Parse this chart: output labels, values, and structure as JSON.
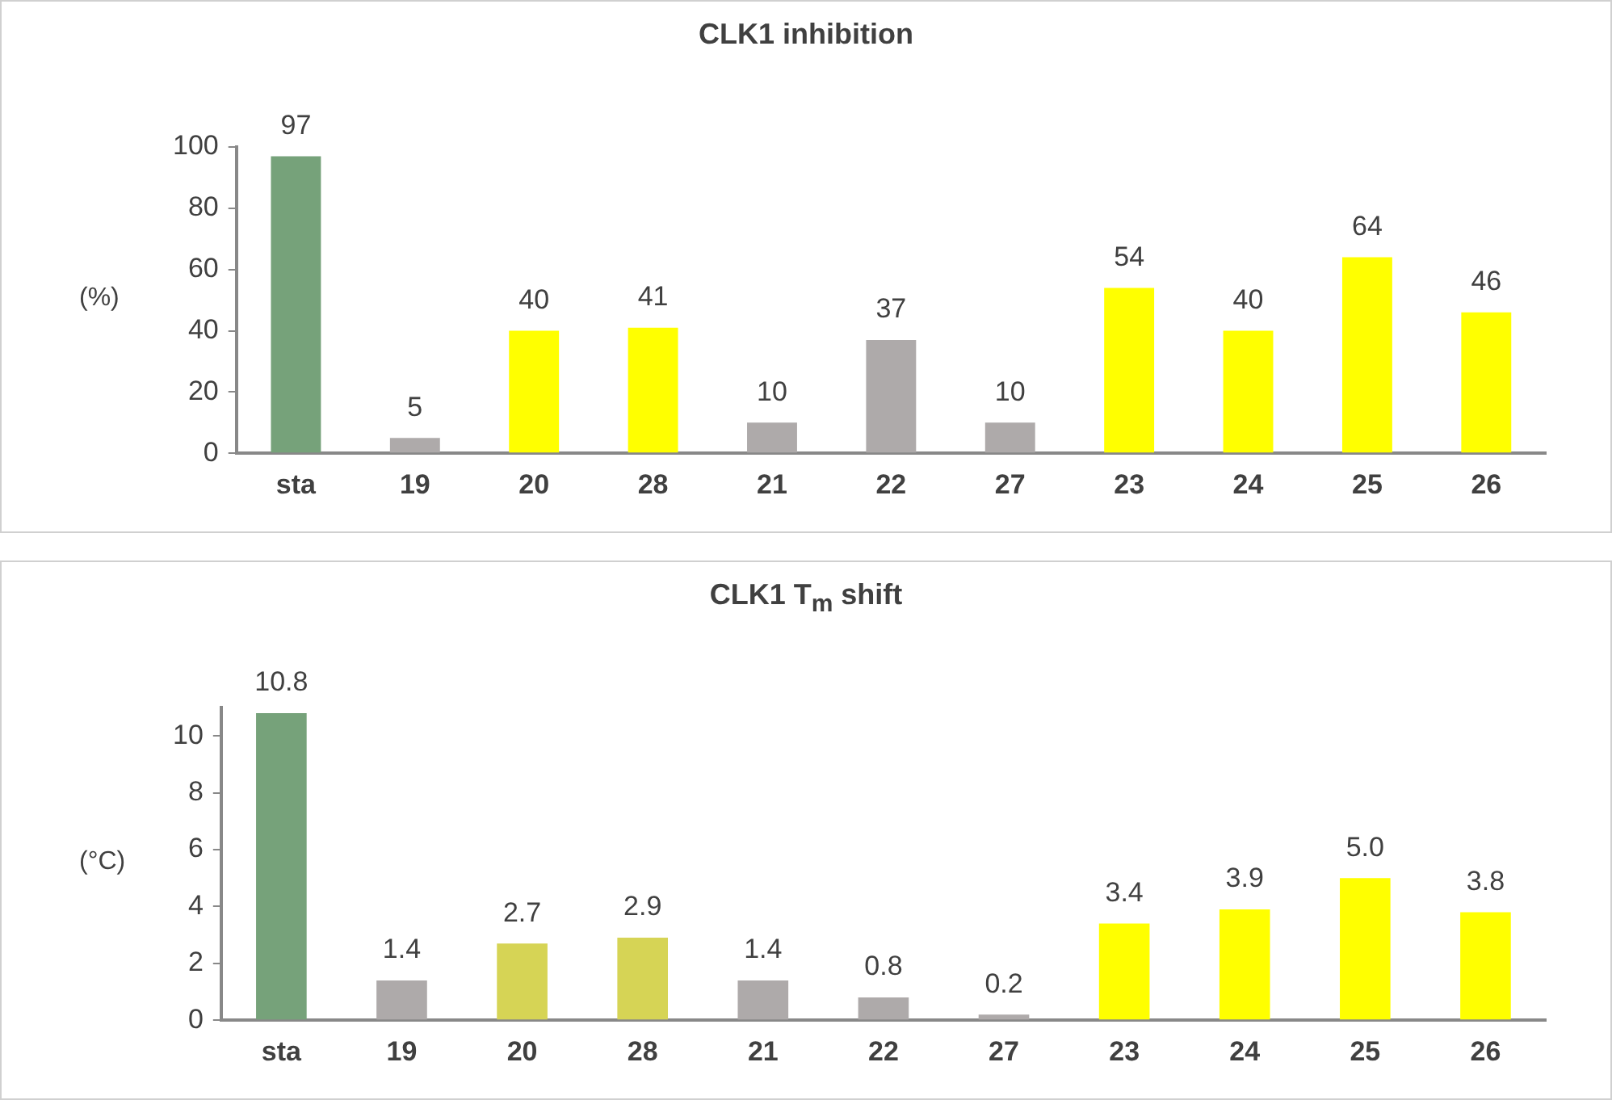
{
  "chart_data": [
    {
      "type": "bar",
      "title": "CLK1 inhibition",
      "ylabel": "(%)",
      "categories": [
        "sta",
        "19",
        "20",
        "28",
        "21",
        "22",
        "27",
        "23",
        "24",
        "25",
        "26"
      ],
      "values": [
        97,
        5,
        40,
        41,
        10,
        37,
        10,
        54,
        40,
        64,
        46
      ],
      "colors": [
        "#76a27a",
        "#aeaaaa",
        "#ffff00",
        "#ffff00",
        "#aeaaaa",
        "#aeaaaa",
        "#aeaaaa",
        "#ffff00",
        "#ffff00",
        "#ffff00",
        "#ffff00"
      ],
      "ylim": [
        0,
        100
      ],
      "yticks": [
        0,
        20,
        40,
        60,
        80,
        100
      ],
      "grid": false,
      "legend": false,
      "data_labels": true
    },
    {
      "type": "bar",
      "title": "CLK1 T$_{m}$ shift",
      "ylabel": "(°C)",
      "categories": [
        "sta",
        "19",
        "20",
        "28",
        "21",
        "22",
        "27",
        "23",
        "24",
        "25",
        "26"
      ],
      "values": [
        10.8,
        1.4,
        2.7,
        2.9,
        1.4,
        0.8,
        0.2,
        3.4,
        3.9,
        5.0,
        3.8
      ],
      "value_labels": [
        "10.8",
        "1.4",
        "2.7",
        "2.9",
        "1.4",
        "0.8",
        "0.2",
        "3.4",
        "3.9",
        "5.0",
        "3.8"
      ],
      "colors": [
        "#76a27a",
        "#aeaaaa",
        "#d6d455",
        "#d6d455",
        "#aeaaaa",
        "#aeaaaa",
        "#aeaaaa",
        "#ffff00",
        "#ffff00",
        "#ffff00",
        "#ffff00"
      ],
      "ylim": [
        0,
        11
      ],
      "yticks": [
        0,
        2,
        4,
        6,
        8,
        10
      ],
      "grid": false,
      "legend": false
    }
  ]
}
